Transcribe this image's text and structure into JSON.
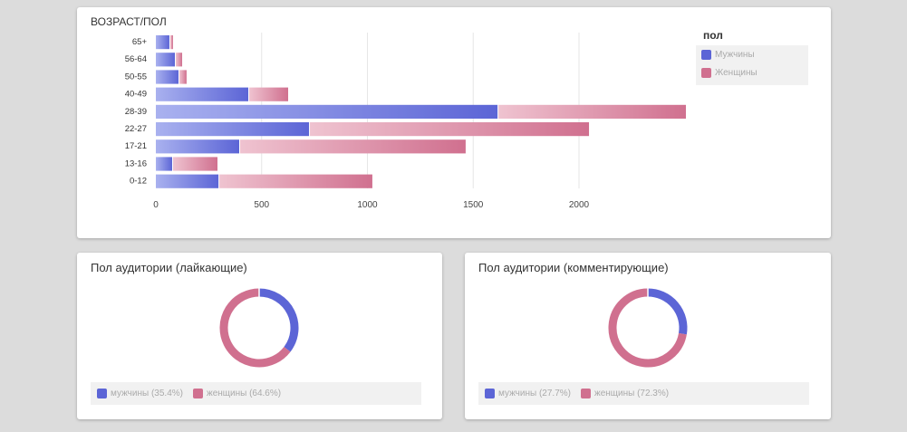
{
  "chart_data": [
    {
      "type": "bar",
      "orientation": "horizontal",
      "stacked": true,
      "title": "ВОЗРАСТ/ПОЛ",
      "categories": [
        "65+",
        "56-64",
        "50-55",
        "40-49",
        "28-39",
        "22-27",
        "17-21",
        "13-16",
        "0-12"
      ],
      "series": [
        {
          "name": "Мужчины",
          "color": "#5c65d6",
          "values": [
            64,
            90,
            107,
            437,
            1615,
            724,
            394,
            77,
            296
          ]
        },
        {
          "name": "Женщины",
          "color": "#d0708f",
          "values": [
            13,
            30,
            34,
            184,
            886,
            1319,
            1066,
            210,
            723
          ]
        }
      ],
      "xticks": [
        "0",
        "500",
        "1000",
        "1500",
        "2000"
      ],
      "xlim": [
        0,
        2500
      ],
      "legend_title": "пол",
      "legend": "right",
      "grid": true
    },
    {
      "type": "pie",
      "donut": true,
      "title": "Пол аудитории (лайкающие)",
      "slices": [
        {
          "label": "мужчины (35.4%)",
          "value": 35.4,
          "color": "#5c65d6"
        },
        {
          "label": "женщины (64.6%)",
          "value": 64.6,
          "color": "#d0708f"
        }
      ]
    },
    {
      "type": "pie",
      "donut": true,
      "title": "Пол аудитории (комментирующие)",
      "slices": [
        {
          "label": "мужчины (27.7%)",
          "value": 27.7,
          "color": "#5c65d6"
        },
        {
          "label": "женщины (72.3%)",
          "value": 72.3,
          "color": "#d0708f"
        }
      ]
    }
  ]
}
